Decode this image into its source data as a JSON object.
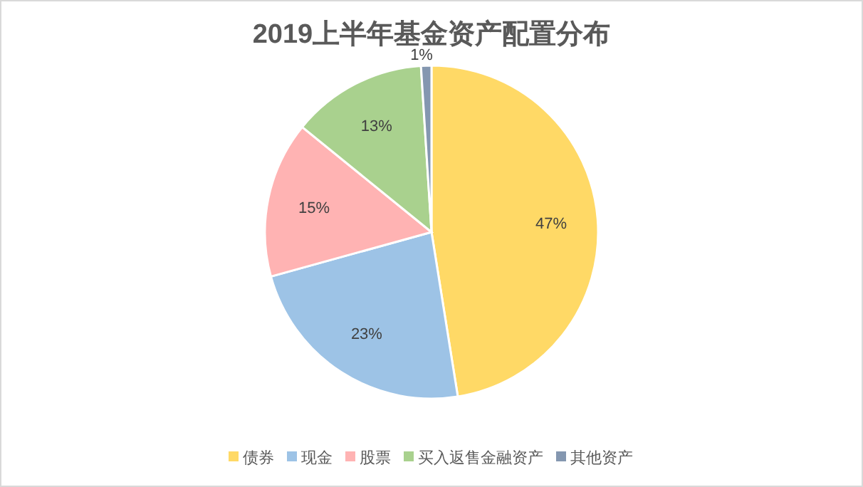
{
  "chart_data": {
    "type": "pie",
    "title": "2019上半年基金资产配置分布",
    "categories": [
      "债券",
      "现金",
      "股票",
      "买入返售金融资产",
      "其他资产"
    ],
    "values": [
      47,
      23,
      15,
      13,
      1
    ],
    "colors": [
      "#ffd966",
      "#9dc3e6",
      "#ffb3b3",
      "#a9d18e",
      "#8497b0"
    ],
    "value_labels": [
      "47%",
      "23%",
      "15%",
      "13%",
      "1%"
    ],
    "legend": "bottom"
  }
}
